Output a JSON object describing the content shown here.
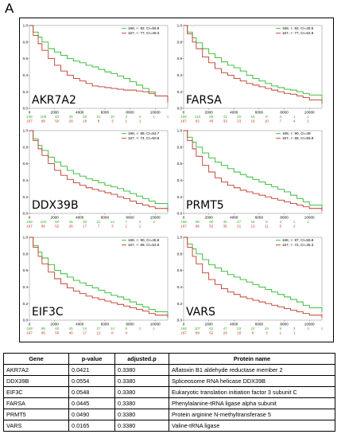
{
  "figure": {
    "panel_label": "A",
    "colors": {
      "high": "#2db82d",
      "low": "#c0392b",
      "frame": "#999999"
    }
  },
  "chart_data": [
    {
      "type": "line",
      "gene": "AKR7A2",
      "xticks": [
        "0",
        "2000",
        "4000",
        "6000",
        "8000",
        "10000"
      ],
      "yticks": [
        "1.0",
        "0.8",
        "0.6",
        "0.4",
        "0.2",
        "0.0"
      ],
      "xlim": [
        0,
        11000
      ],
      "ylim": [
        0,
        1
      ],
      "legend": [
        "168, +: 82, CI=56.8",
        "167, +: 77, CI=49.3"
      ],
      "risk_high": [
        "168",
        "108",
        "62",
        "45",
        "30",
        "21",
        "10",
        "3",
        "2",
        "1",
        "1"
      ],
      "risk_low": [
        "167",
        "88",
        "50",
        "29",
        "18",
        "8",
        "3",
        "1",
        "1",
        "",
        ""
      ],
      "series": [
        {
          "label": "168, +: 82, CI=56.8",
          "color": "#2db82d",
          "x": [
            0,
            300,
            700,
            1000,
            1500,
            2000,
            2500,
            3000,
            3500,
            4000,
            4500,
            5000,
            5500,
            6000,
            6500,
            7000,
            7500,
            8000,
            8500,
            9000,
            9500,
            10000,
            11000
          ],
          "y": [
            1,
            0.92,
            0.86,
            0.8,
            0.72,
            0.68,
            0.64,
            0.6,
            0.57,
            0.55,
            0.52,
            0.5,
            0.47,
            0.44,
            0.42,
            0.39,
            0.36,
            0.32,
            0.28,
            0.24,
            0.2,
            0.15,
            0.12
          ]
        },
        {
          "label": "167, +: 77, CI=49.3",
          "color": "#c0392b",
          "x": [
            0,
            300,
            700,
            1000,
            1500,
            2000,
            2500,
            3000,
            3500,
            4000,
            4500,
            5000,
            5500,
            6000,
            6500,
            7000,
            7500,
            8000,
            8500,
            9000,
            9500,
            10000,
            11000
          ],
          "y": [
            1,
            0.88,
            0.78,
            0.7,
            0.6,
            0.52,
            0.45,
            0.4,
            0.36,
            0.33,
            0.3,
            0.27,
            0.26,
            0.25,
            0.24,
            0.23,
            0.22,
            0.22,
            0.21,
            0.2,
            0.18,
            0.15,
            0.07
          ]
        }
      ]
    },
    {
      "type": "line",
      "gene": "FARSA",
      "xticks": [
        "0",
        "2000",
        "4000",
        "6000",
        "8000",
        "10000"
      ],
      "yticks": [
        "1.0",
        "0.8",
        "0.6",
        "0.4",
        "0.2",
        "0.0"
      ],
      "xlim": [
        0,
        11000
      ],
      "ylim": [
        0,
        1
      ],
      "legend": [
        "168, +: 82, CI=45.5",
        "167, +: 77, CI=52.9"
      ],
      "risk_high": [
        "168",
        "110",
        "65",
        "41",
        "25",
        "16",
        "8",
        "2",
        "1",
        "1",
        ""
      ],
      "risk_low": [
        "167",
        "82",
        "45",
        "33",
        "23",
        "16",
        "10",
        "7",
        "4",
        "1",
        ""
      ],
      "series": [
        {
          "label": "168, +: 82, CI=45.5",
          "color": "#2db82d",
          "x": [
            0,
            300,
            700,
            1000,
            1500,
            2000,
            2500,
            3000,
            3500,
            4000,
            4500,
            5000,
            5500,
            6000,
            6500,
            7000,
            7500,
            8000,
            8500,
            9000,
            9500,
            10000,
            11000
          ],
          "y": [
            1,
            0.92,
            0.85,
            0.79,
            0.72,
            0.66,
            0.61,
            0.56,
            0.52,
            0.49,
            0.45,
            0.4,
            0.36,
            0.33,
            0.3,
            0.27,
            0.25,
            0.23,
            0.22,
            0.2,
            0.18,
            0.16,
            0.05
          ]
        },
        {
          "label": "167, +: 77, CI=52.9",
          "color": "#c0392b",
          "x": [
            0,
            300,
            700,
            1000,
            1500,
            2000,
            2500,
            3000,
            3500,
            4000,
            4500,
            5000,
            5500,
            6000,
            6500,
            7000,
            7500,
            8000,
            8500,
            9000,
            9500,
            10000,
            11000
          ],
          "y": [
            1,
            0.9,
            0.8,
            0.72,
            0.62,
            0.55,
            0.48,
            0.43,
            0.4,
            0.36,
            0.33,
            0.3,
            0.28,
            0.26,
            0.24,
            0.22,
            0.2,
            0.18,
            0.17,
            0.15,
            0.13,
            0.1,
            0.07
          ]
        }
      ]
    },
    {
      "type": "line",
      "gene": "DDX39B",
      "xticks": [
        "0",
        "2000",
        "4000",
        "6000",
        "8000",
        "10000"
      ],
      "yticks": [
        "1.0",
        "0.8",
        "0.6",
        "0.4",
        "0.2",
        "0.0"
      ],
      "xlim": [
        0,
        11000
      ],
      "ylim": [
        0,
        1
      ],
      "legend": [
        "168, +: 85, CI=52.7",
        "167, +: 74, CI=50.8"
      ],
      "risk_high": [
        "168",
        "103",
        "60",
        "46",
        "30",
        "21",
        "14",
        "7",
        "3",
        "2",
        ""
      ],
      "risk_low": [
        "167",
        "86",
        "52",
        "28",
        "17",
        "7",
        "3",
        "1",
        "1",
        "",
        ""
      ],
      "series": [
        {
          "label": "168, +: 85, CI=52.7",
          "color": "#2db82d",
          "x": [
            0,
            300,
            700,
            1000,
            1500,
            2000,
            2500,
            3000,
            3500,
            4000,
            4500,
            5000,
            5500,
            6000,
            6500,
            7000,
            7500,
            8000,
            8500,
            9000,
            9500,
            10000,
            11000
          ],
          "y": [
            1,
            0.9,
            0.82,
            0.76,
            0.68,
            0.62,
            0.57,
            0.52,
            0.48,
            0.45,
            0.42,
            0.4,
            0.37,
            0.34,
            0.32,
            0.3,
            0.27,
            0.24,
            0.21,
            0.18,
            0.15,
            0.12,
            0.02
          ]
        },
        {
          "label": "167, +: 74, CI=50.8",
          "color": "#c0392b",
          "x": [
            0,
            300,
            700,
            1000,
            1500,
            2000,
            2500,
            3000,
            3500,
            4000,
            4500,
            5000,
            5500,
            6000,
            6500,
            7000,
            7500,
            8000,
            8500,
            9000,
            9500,
            10000,
            11000
          ],
          "y": [
            1,
            0.88,
            0.78,
            0.7,
            0.6,
            0.52,
            0.46,
            0.41,
            0.37,
            0.34,
            0.31,
            0.29,
            0.27,
            0.25,
            0.23,
            0.2,
            0.18,
            0.15,
            0.12,
            0.1,
            0.08,
            0.06,
            0.03
          ]
        }
      ]
    },
    {
      "type": "line",
      "gene": "PRMT5",
      "xticks": [
        "0",
        "2000",
        "4000",
        "6000",
        "8000",
        "10000"
      ],
      "yticks": [
        "1.0",
        "0.8",
        "0.6",
        "0.4",
        "0.2",
        "0.0"
      ],
      "xlim": [
        0,
        11000
      ],
      "ylim": [
        0,
        1
      ],
      "legend": [
        "168, +: 90, CI=48",
        "167, +: 69, CI=55.8"
      ],
      "risk_high": [
        "168",
        "98",
        "60",
        "40",
        "27",
        "16",
        "9",
        "3",
        "1",
        "1",
        ""
      ],
      "risk_low": [
        "167",
        "96",
        "52",
        "35",
        "21",
        "13",
        "11",
        "5",
        "2",
        "",
        ""
      ],
      "series": [
        {
          "label": "168, +: 90, CI=48",
          "color": "#2db82d",
          "x": [
            0,
            300,
            700,
            1000,
            1500,
            2000,
            2500,
            3000,
            3500,
            4000,
            4500,
            5000,
            5500,
            6000,
            6500,
            7000,
            7500,
            8000,
            8500,
            9000,
            9500,
            10000,
            11000
          ],
          "y": [
            1,
            0.92,
            0.86,
            0.8,
            0.73,
            0.67,
            0.62,
            0.58,
            0.54,
            0.5,
            0.47,
            0.44,
            0.41,
            0.38,
            0.35,
            0.32,
            0.29,
            0.26,
            0.22,
            0.18,
            0.14,
            0.1,
            0.03
          ]
        },
        {
          "label": "167, +: 69, CI=55.8",
          "color": "#c0392b",
          "x": [
            0,
            300,
            700,
            1000,
            1500,
            2000,
            2500,
            3000,
            3500,
            4000,
            4500,
            5000,
            5500,
            6000,
            6500,
            7000,
            7500,
            8000,
            8500,
            9000,
            9500,
            10000,
            11000
          ],
          "y": [
            1,
            0.88,
            0.78,
            0.69,
            0.58,
            0.5,
            0.43,
            0.38,
            0.34,
            0.31,
            0.28,
            0.26,
            0.24,
            0.22,
            0.2,
            0.18,
            0.16,
            0.14,
            0.12,
            0.1,
            0.08,
            0.06,
            0.03
          ]
        }
      ]
    },
    {
      "type": "line",
      "gene": "EIF3C",
      "xticks": [
        "0",
        "2000",
        "4000",
        "6000",
        "8000",
        "10000"
      ],
      "yticks": [
        "1.0",
        "0.8",
        "0.6",
        "0.4",
        "0.2",
        "0.0"
      ],
      "xlim": [
        0,
        11000
      ],
      "ylim": [
        0,
        1
      ],
      "legend": [
        "168, +: 90, CI=45.8",
        "167, +: 69, CI=52.9"
      ],
      "risk_high": [
        "168",
        "98",
        "60",
        "45",
        "34",
        "27",
        "14",
        "6",
        "2",
        "1",
        ""
      ],
      "risk_low": [
        "167",
        "95",
        "50",
        "40",
        "17",
        "12",
        "8",
        "4",
        "",
        "",
        ""
      ],
      "series": [
        {
          "label": "168, +: 90, CI=45.8",
          "color": "#2db82d",
          "x": [
            0,
            300,
            700,
            1000,
            1500,
            2000,
            2500,
            3000,
            3500,
            4000,
            4500,
            5000,
            5500,
            6000,
            6500,
            7000,
            7500,
            8000,
            8500,
            9000,
            9500,
            10000,
            11000
          ],
          "y": [
            1,
            0.9,
            0.82,
            0.75,
            0.67,
            0.6,
            0.56,
            0.52,
            0.48,
            0.45,
            0.42,
            0.39,
            0.36,
            0.33,
            0.3,
            0.28,
            0.25,
            0.22,
            0.19,
            0.16,
            0.13,
            0.1,
            0.04
          ]
        },
        {
          "label": "167, +: 69, CI=52.9",
          "color": "#c0392b",
          "x": [
            0,
            300,
            700,
            1000,
            1500,
            2000,
            2500,
            3000,
            3500,
            4000,
            4500,
            5000,
            5500,
            6000,
            6500,
            7000,
            7500,
            8000,
            8500,
            9000,
            9500,
            10000,
            11000
          ],
          "y": [
            1,
            0.88,
            0.77,
            0.68,
            0.58,
            0.5,
            0.44,
            0.39,
            0.35,
            0.32,
            0.29,
            0.27,
            0.25,
            0.23,
            0.21,
            0.19,
            0.17,
            0.15,
            0.13,
            0.11,
            0.08,
            0.06,
            0.03
          ]
        }
      ]
    },
    {
      "type": "line",
      "gene": "VARS",
      "xticks": [
        "0",
        "2000",
        "4000",
        "6000",
        "8000",
        "10000"
      ],
      "yticks": [
        "1.0",
        "0.8",
        "0.6",
        "0.4",
        "0.2",
        "0.0"
      ],
      "xlim": [
        0,
        11000
      ],
      "ylim": [
        0,
        1
      ],
      "legend": [
        "168, +: 87, CI=56.8",
        "167, +: 72, CI=45.3"
      ],
      "risk_high": [
        "168",
        "107",
        "62",
        "47",
        "33",
        "22",
        "15",
        "9",
        "3",
        "2",
        "1"
      ],
      "risk_low": [
        "167",
        "89",
        "52",
        "29",
        "18",
        "8",
        "3",
        "1",
        "1",
        "",
        ""
      ],
      "series": [
        {
          "label": "168, +: 87, CI=56.8",
          "color": "#2db82d",
          "x": [
            0,
            300,
            700,
            1000,
            1500,
            2000,
            2500,
            3000,
            3500,
            4000,
            4500,
            5000,
            5500,
            6000,
            6500,
            7000,
            7500,
            8000,
            8500,
            9000,
            9500,
            10000,
            11000
          ],
          "y": [
            1,
            0.92,
            0.86,
            0.8,
            0.73,
            0.67,
            0.63,
            0.59,
            0.55,
            0.52,
            0.49,
            0.46,
            0.43,
            0.4,
            0.37,
            0.34,
            0.31,
            0.28,
            0.25,
            0.22,
            0.18,
            0.15,
            0.1
          ]
        },
        {
          "label": "167, +: 72, CI=45.3",
          "color": "#c0392b",
          "x": [
            0,
            300,
            700,
            1000,
            1500,
            2000,
            2500,
            3000,
            3500,
            4000,
            4500,
            5000,
            5500,
            6000,
            6500,
            7000,
            7500,
            8000,
            8500,
            9000,
            9500,
            10000,
            11000
          ],
          "y": [
            1,
            0.88,
            0.77,
            0.68,
            0.57,
            0.49,
            0.43,
            0.38,
            0.34,
            0.31,
            0.28,
            0.26,
            0.24,
            0.22,
            0.2,
            0.18,
            0.16,
            0.14,
            0.12,
            0.1,
            0.08,
            0.06,
            0.03
          ]
        }
      ]
    }
  ],
  "table": {
    "headers": [
      "Gene",
      "p-value",
      "adjusted.p",
      "Protein name"
    ],
    "rows": [
      [
        "AKR7A2",
        "0.0421",
        "0.3380",
        "Aflatoxin B1 aldehyde reductase member 2"
      ],
      [
        "DDX39B",
        "0.0554",
        "0.3380",
        "Spliceosome RNA helicase DDX39B"
      ],
      [
        "EIF3C",
        "0.0548",
        "0.3380",
        "Eukaryotic translation initiation factor 3 subunit C"
      ],
      [
        "FARSA",
        "0.0445",
        "0.3380",
        "Phenylalanine-tRNA ligase alpha subunit"
      ],
      [
        "PRMT5",
        "0.0490",
        "0.3380",
        "Protein arginine N-methyltransferase 5"
      ],
      [
        "VARS",
        "0.0165",
        "0.3380",
        "Valine-tRNA ligase"
      ]
    ]
  }
}
